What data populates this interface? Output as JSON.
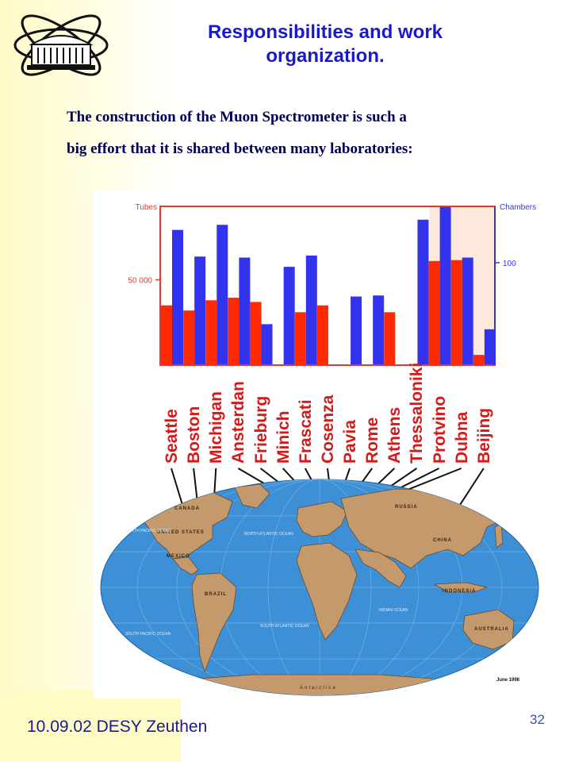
{
  "slide": {
    "title_line1": "Responsibilities and work",
    "title_line2": "organization",
    "title_dot": ".",
    "intro_line1": "The construction of the Muon Spectrometer  is such a",
    "intro_line2": "big effort that it is shared between many laboratories:",
    "footer": "10.09.02 DESY Zeuthen",
    "page_number": "32"
  },
  "chart_data": {
    "type": "bar",
    "categories": [
      "Seattle",
      "Boston",
      "Michigan",
      "Ansterdan",
      "Frieburg",
      "Minich",
      "Frascati",
      "Cosenza",
      "Pavia",
      "Rome",
      "Athens",
      "Thessaloniki",
      "Protvino",
      "Dubna",
      "Beijing"
    ],
    "left_axis_label": "Tubes",
    "right_axis_label": "Chambers",
    "left_tick": "50 000",
    "right_tick": "100",
    "left_tick_value": 50000,
    "right_tick_value": 100,
    "ylim_left": [
      0,
      93000
    ],
    "ylim_right": [
      0,
      155
    ],
    "series": [
      {
        "name": "Tubes",
        "axis": "left",
        "color": "#ff2a00",
        "values": [
          35000,
          32000,
          38000,
          39500,
          37000,
          0,
          31000,
          35000,
          0,
          0,
          31000,
          0,
          61000,
          61500,
          6000
        ]
      },
      {
        "name": "Chambers",
        "axis": "right",
        "color": "#3333ee",
        "values": [
          132,
          106,
          137,
          105,
          40,
          96,
          107,
          0,
          67,
          68,
          0,
          142,
          155,
          105,
          35
        ]
      }
    ],
    "highlight_region": [
      "Protvino",
      "Beijing"
    ]
  },
  "map": {
    "labels": [
      "RUSSIA",
      "CHINA",
      "INDONESIA",
      "AUSTRALIA",
      "BRAZIL",
      "UNITED STATES",
      "CANADA",
      "MEXICO",
      "NORTH PACIFIC OCEAN",
      "NORTH ATLANTIC OCEAN",
      "SOUTH PACIFIC OCEAN",
      "SOUTH ATLANTIC OCEAN",
      "INDIAN OCEAN",
      "Antarctica"
    ],
    "date_note": "June 1998",
    "land_color": "#c49a6c",
    "ocean_color": "#3d8fd6"
  }
}
